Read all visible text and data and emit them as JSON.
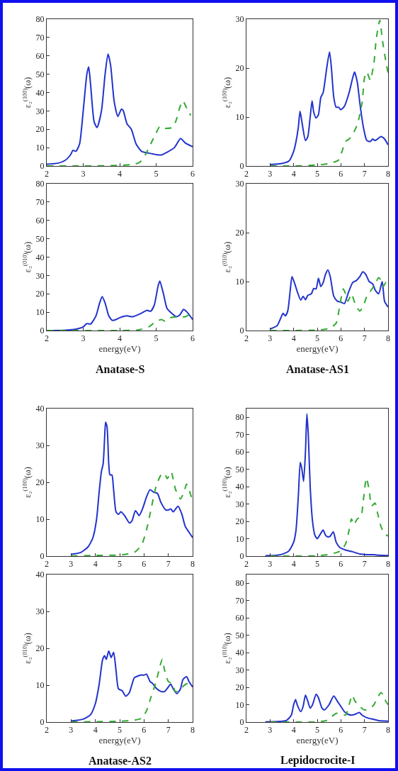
{
  "chart_data": [
    {
      "type": "line",
      "ylabel": "ε₂$^{(100)}$(ω)",
      "xlim": [
        2,
        6
      ],
      "xticks": [
        2,
        3,
        4,
        5,
        6
      ],
      "ylim": [
        0,
        80
      ],
      "yticks": [
        0,
        10,
        20,
        30,
        40,
        50,
        60,
        70,
        80
      ],
      "series": [
        {
          "color": "#2233cc",
          "line_style": "solid",
          "x": [
            2,
            2.3,
            2.5,
            2.65,
            2.72,
            2.8,
            2.9,
            3.0,
            3.1,
            3.15,
            3.2,
            3.3,
            3.38,
            3.5,
            3.6,
            3.68,
            3.75,
            3.85,
            3.95,
            4.05,
            4.1,
            4.2,
            4.32,
            4.45,
            4.6,
            4.8,
            5.0,
            5.15,
            5.3,
            5.5,
            5.67,
            5.8,
            6
          ],
          "values": [
            1,
            1.5,
            3,
            6,
            8.5,
            8,
            12,
            30,
            50,
            54,
            45,
            24,
            21,
            30,
            50,
            61,
            55,
            35,
            27,
            31,
            30,
            23,
            20,
            12,
            8,
            7,
            6.2,
            6,
            7.5,
            10,
            15,
            12.5,
            10.5
          ]
        },
        {
          "color": "#33aa33",
          "line_style": "dashed",
          "x": [
            2,
            3,
            4,
            4.4,
            4.55,
            4.7,
            4.85,
            5.0,
            5.1,
            5.2,
            5.45,
            5.55,
            5.65,
            5.73,
            5.85,
            5.95
          ],
          "values": [
            0,
            0,
            0.3,
            1,
            2,
            6,
            12,
            18,
            21.5,
            20.5,
            21,
            25,
            32,
            35.5,
            31,
            27.5
          ]
        }
      ]
    },
    {
      "type": "line",
      "ylabel": "ε₂$^{(010)}$(ω)",
      "xlabel": "energy(eV)",
      "annotations": [
        "Anatase-S"
      ],
      "xlim": [
        2,
        6
      ],
      "xticks": [
        2,
        3,
        4,
        5,
        6
      ],
      "ylim": [
        0,
        80
      ],
      "yticks": [
        0,
        10,
        20,
        30,
        40,
        50,
        60,
        70,
        80
      ],
      "series": [
        {
          "color": "#2233cc",
          "line_style": "solid",
          "x": [
            2,
            2.5,
            2.8,
            3.0,
            3.1,
            3.2,
            3.35,
            3.45,
            3.52,
            3.6,
            3.7,
            3.8,
            3.9,
            4.0,
            4.2,
            4.35,
            4.6,
            4.75,
            4.85,
            4.95,
            5.05,
            5.1,
            5.2,
            5.3,
            5.45,
            5.55,
            5.65,
            5.75,
            5.85,
            6
          ],
          "values": [
            0,
            0.2,
            0.8,
            2,
            3.8,
            3.5,
            8,
            15,
            18.5,
            15,
            8,
            5.5,
            6,
            7,
            8,
            7.5,
            9.5,
            11,
            10.5,
            14,
            24,
            27,
            20,
            12,
            9,
            7.5,
            8.5,
            11.5,
            10,
            6
          ]
        },
        {
          "color": "#33aa33",
          "line_style": "dashed",
          "x": [
            2,
            4,
            4.5,
            4.8,
            5.0,
            5.15,
            5.25,
            5.4,
            5.6,
            5.8,
            5.9,
            6
          ],
          "values": [
            0,
            0,
            0.3,
            2,
            5,
            6,
            5,
            7,
            7.5,
            7.5,
            8.5,
            7.5
          ]
        }
      ]
    },
    {
      "type": "line",
      "ylabel": "ε₂$^{(100)}$(ω)",
      "xlim": [
        2,
        8
      ],
      "xticks": [
        2,
        3,
        4,
        5,
        6,
        7,
        8
      ],
      "ylim": [
        0,
        30
      ],
      "yticks": [
        0,
        10,
        20,
        30
      ],
      "series": [
        {
          "color": "#2233cc",
          "line_style": "solid",
          "x": [
            3,
            3.5,
            3.8,
            4.0,
            4.1,
            4.2,
            4.27,
            4.35,
            4.5,
            4.6,
            4.7,
            4.78,
            4.85,
            4.95,
            5.05,
            5.15,
            5.25,
            5.4,
            5.52,
            5.6,
            5.7,
            5.8,
            5.9,
            6.0,
            6.15,
            6.35,
            6.5,
            6.58,
            6.7,
            6.8,
            6.95,
            7.1,
            7.25,
            7.35,
            7.45,
            7.55,
            7.7,
            7.85,
            8
          ],
          "values": [
            0.3,
            0.5,
            1,
            3,
            5,
            8,
            11.2,
            9,
            5.2,
            6,
            10,
            13.3,
            11,
            9.8,
            10.5,
            14,
            15,
            20,
            23.3,
            20,
            14,
            12,
            12,
            11.5,
            12.2,
            15,
            18,
            19.2,
            17,
            13,
            8,
            5.2,
            5,
            5.5,
            5.2,
            5.5,
            6,
            5.5,
            4.3
          ]
        },
        {
          "color": "#33aa33",
          "line_style": "dashed",
          "x": [
            3,
            4,
            5,
            5.5,
            5.9,
            6.05,
            6.2,
            6.35,
            6.5,
            6.7,
            6.9,
            7.0,
            7.1,
            7.2,
            7.25,
            7.4,
            7.5,
            7.65,
            7.75,
            7.9,
            8
          ],
          "values": [
            0,
            0,
            0.2,
            0.5,
            1.2,
            3,
            5,
            5.5,
            6.5,
            8.5,
            13,
            18,
            19.2,
            18,
            17.5,
            21,
            26,
            29.8,
            26,
            21.5,
            19
          ]
        }
      ]
    },
    {
      "type": "line",
      "ylabel": "ε₂$^{(010)}$(ω)",
      "xlabel": "energy(eV)",
      "annotations": [
        "Anatase-AS1"
      ],
      "xlim": [
        2,
        8
      ],
      "xticks": [
        2,
        3,
        4,
        5,
        6,
        7,
        8
      ],
      "ylim": [
        0,
        30
      ],
      "yticks": [
        0,
        10,
        20,
        30
      ],
      "series": [
        {
          "color": "#2233cc",
          "line_style": "solid",
          "x": [
            3,
            3.3,
            3.45,
            3.55,
            3.65,
            3.75,
            3.85,
            3.93,
            4.05,
            4.15,
            4.3,
            4.4,
            4.5,
            4.6,
            4.75,
            4.85,
            4.95,
            5.05,
            5.15,
            5.25,
            5.35,
            5.45,
            5.55,
            5.7,
            5.85,
            6.0,
            6.15,
            6.3,
            6.5,
            6.65,
            6.8,
            6.93,
            7.05,
            7.2,
            7.35,
            7.45,
            7.6,
            7.75,
            7.85,
            8
          ],
          "values": [
            0.3,
            1,
            2.5,
            3.5,
            3,
            4,
            8,
            11,
            9.5,
            8,
            6.2,
            7,
            6.3,
            7.2,
            7.5,
            8.6,
            8.5,
            10.7,
            9,
            9.8,
            11.5,
            12.4,
            11,
            7,
            6,
            5.8,
            5.5,
            7.5,
            9.8,
            10.2,
            11,
            12,
            11.5,
            10,
            9.5,
            8.3,
            7.5,
            10,
            6,
            4.8
          ]
        },
        {
          "color": "#33aa33",
          "line_style": "dashed",
          "x": [
            3,
            4,
            5,
            5.5,
            5.8,
            5.95,
            6.1,
            6.2,
            6.3,
            6.45,
            6.6,
            6.8,
            6.95,
            7.1,
            7.25,
            7.45,
            7.6,
            7.7,
            7.8,
            7.9,
            8
          ],
          "values": [
            0,
            0,
            0.1,
            0.4,
            1.5,
            5,
            8.5,
            7.5,
            6,
            7.5,
            5.5,
            4,
            5,
            7,
            8,
            9.5,
            10.8,
            10.2,
            9,
            9.8,
            9.5
          ]
        }
      ]
    },
    {
      "type": "line",
      "ylabel": "ε₂$^{(100)}$(ω)",
      "xlim": [
        2,
        8
      ],
      "xticks": [
        2,
        3,
        4,
        5,
        6,
        7,
        8
      ],
      "ylim": [
        0,
        40
      ],
      "yticks": [
        0,
        10,
        20,
        30,
        40
      ],
      "series": [
        {
          "color": "#2233cc",
          "line_style": "solid",
          "x": [
            3,
            3.4,
            3.7,
            3.9,
            4.05,
            4.15,
            4.25,
            4.32,
            4.38,
            4.42,
            4.48,
            4.55,
            4.6,
            4.68,
            4.75,
            4.85,
            4.95,
            5.05,
            5.2,
            5.4,
            5.5,
            5.65,
            5.8,
            5.95,
            6.1,
            6.25,
            6.4,
            6.55,
            6.7,
            6.9,
            7.0,
            7.1,
            7.2,
            7.4,
            7.55,
            7.7,
            7.85,
            8
          ],
          "values": [
            0.5,
            1,
            2.5,
            5,
            10,
            17,
            23,
            25,
            32,
            36.3,
            35,
            25,
            22,
            22,
            18,
            12,
            11.3,
            12,
            11,
            9,
            9.5,
            12.3,
            11,
            13,
            16,
            18,
            17.3,
            17,
            14.5,
            12.5,
            12.5,
            12.8,
            12,
            13.5,
            11.5,
            8,
            6.5,
            5
          ]
        },
        {
          "color": "#33aa33",
          "line_style": "dashed",
          "x": [
            3,
            4,
            5,
            5.6,
            5.9,
            6.1,
            6.3,
            6.5,
            6.7,
            6.85,
            6.95,
            7.05,
            7.12,
            7.3,
            7.5,
            7.65,
            7.75,
            7.85,
            8
          ],
          "values": [
            0,
            0.2,
            0.3,
            1,
            3,
            7,
            13,
            19,
            22,
            22.4,
            21,
            22,
            22.8,
            18,
            15.5,
            17.5,
            19.5,
            18,
            15
          ]
        }
      ]
    },
    {
      "type": "line",
      "ylabel": "ε₂$^{(010)}$(ω)",
      "xlabel": "energy(eV)",
      "annotations": [
        "Anatase-AS2"
      ],
      "xlim": [
        2,
        8
      ],
      "xticks": [
        2,
        3,
        4,
        5,
        6,
        7,
        8
      ],
      "ylim": [
        0,
        40
      ],
      "yticks": [
        0,
        10,
        20,
        30,
        40
      ],
      "series": [
        {
          "color": "#2233cc",
          "line_style": "solid",
          "x": [
            3,
            3.5,
            3.8,
            4.0,
            4.15,
            4.3,
            4.38,
            4.45,
            4.55,
            4.65,
            4.75,
            4.85,
            4.95,
            5.1,
            5.25,
            5.4,
            5.6,
            5.75,
            5.9,
            6.0,
            6.1,
            6.25,
            6.35,
            6.5,
            6.7,
            6.85,
            7.0,
            7.1,
            7.2,
            7.35,
            7.5,
            7.6,
            7.75,
            7.85,
            8
          ],
          "values": [
            0.3,
            0.8,
            2,
            5,
            10,
            17,
            18,
            17,
            19.3,
            17.5,
            18.9,
            14,
            9,
            8.5,
            7,
            8,
            12,
            12.5,
            12.8,
            12.7,
            13,
            11,
            10.5,
            9.2,
            8.3,
            8.3,
            9.5,
            10.3,
            9,
            7.7,
            9,
            11.5,
            12.3,
            11,
            9.5
          ]
        },
        {
          "color": "#33aa33",
          "line_style": "dashed",
          "x": [
            3,
            4,
            5,
            5.6,
            5.9,
            6.1,
            6.3,
            6.5,
            6.65,
            6.75,
            6.85,
            7.0,
            7.15,
            7.3,
            7.5,
            7.7,
            7.8,
            8
          ],
          "values": [
            0,
            0.1,
            0.2,
            0.5,
            1,
            3,
            7,
            11,
            15,
            17,
            14,
            11,
            10.5,
            8.2,
            9,
            10.2,
            10.5,
            9.5
          ]
        }
      ]
    },
    {
      "type": "line",
      "ylabel": "ε₂$^{(100)}$(ω)",
      "xlim": [
        2,
        8
      ],
      "xticks": [
        2,
        3,
        4,
        5,
        6,
        7,
        8
      ],
      "ylim": [
        0,
        85
      ],
      "yticks": [
        0,
        10,
        20,
        30,
        40,
        50,
        60,
        70,
        80
      ],
      "series": [
        {
          "color": "#2233cc",
          "line_style": "solid",
          "x": [
            2.8,
            3.3,
            3.6,
            3.8,
            4.0,
            4.1,
            4.2,
            4.28,
            4.35,
            4.42,
            4.5,
            4.56,
            4.62,
            4.7,
            4.8,
            4.9,
            5.0,
            5.1,
            5.25,
            5.35,
            5.45,
            5.55,
            5.68,
            5.8,
            5.95,
            6.2,
            6.5,
            6.8,
            7.1,
            7.4,
            7.6,
            8
          ],
          "values": [
            0.2,
            0.5,
            1.5,
            3,
            8,
            15,
            35,
            54,
            50,
            43,
            60,
            82,
            70,
            40,
            20,
            12,
            10,
            12,
            15,
            12,
            11,
            11.5,
            14,
            8,
            5,
            3.5,
            2.5,
            1.2,
            0.8,
            0.8,
            0.5,
            0.3
          ]
        },
        {
          "color": "#33aa33",
          "line_style": "dashed",
          "x": [
            3,
            4,
            5,
            5.5,
            5.8,
            6.0,
            6.2,
            6.35,
            6.45,
            6.55,
            6.7,
            6.85,
            6.95,
            7.08,
            7.2,
            7.3,
            7.45,
            7.55,
            7.7,
            7.85,
            8
          ],
          "values": [
            0,
            0,
            0.2,
            1,
            2,
            3,
            7,
            15,
            21.5,
            18,
            21.5,
            22.5,
            32,
            45,
            38,
            29,
            30.5,
            25,
            17,
            13,
            11.5
          ]
        }
      ]
    },
    {
      "type": "line",
      "ylabel": "ε₂$^{(010)}$(ω)",
      "xlabel": "energy(eV)",
      "annotations": [
        "Lepidocrocite-I"
      ],
      "xlim": [
        2,
        8
      ],
      "xticks": [
        2,
        3,
        4,
        5,
        6,
        7,
        8
      ],
      "ylim": [
        0,
        85
      ],
      "yticks": [
        0,
        10,
        20,
        30,
        40,
        50,
        60,
        70,
        80
      ],
      "series": [
        {
          "color": "#2233cc",
          "line_style": "solid",
          "x": [
            2.8,
            3.3,
            3.7,
            3.9,
            4.0,
            4.08,
            4.15,
            4.3,
            4.4,
            4.5,
            4.6,
            4.7,
            4.8,
            4.95,
            5.05,
            5.2,
            5.3,
            5.5,
            5.7,
            5.85,
            6.0,
            6.15,
            6.3,
            6.45,
            6.6,
            6.78,
            6.9,
            7.1,
            7.4,
            7.6,
            8
          ],
          "values": [
            0.1,
            0.3,
            1,
            4,
            10,
            13,
            10,
            6,
            9,
            15.5,
            12,
            8,
            10,
            16,
            14,
            8,
            7,
            10,
            15,
            12,
            9,
            6,
            4.5,
            4,
            4.5,
            5.5,
            4,
            2.5,
            1.5,
            0.8,
            0.5
          ]
        },
        {
          "color": "#33aa33",
          "line_style": "dashed",
          "x": [
            3,
            4,
            5,
            5.4,
            5.6,
            5.8,
            6.0,
            6.2,
            6.35,
            6.48,
            6.6,
            6.8,
            7.0,
            7.2,
            7.4,
            7.55,
            7.7,
            7.8,
            7.9,
            8
          ],
          "values": [
            0,
            0,
            0.1,
            1,
            3,
            5,
            5,
            4,
            10,
            15.5,
            12,
            9,
            7,
            7.5,
            10,
            14,
            17,
            15.5,
            12,
            10
          ]
        }
      ]
    }
  ]
}
